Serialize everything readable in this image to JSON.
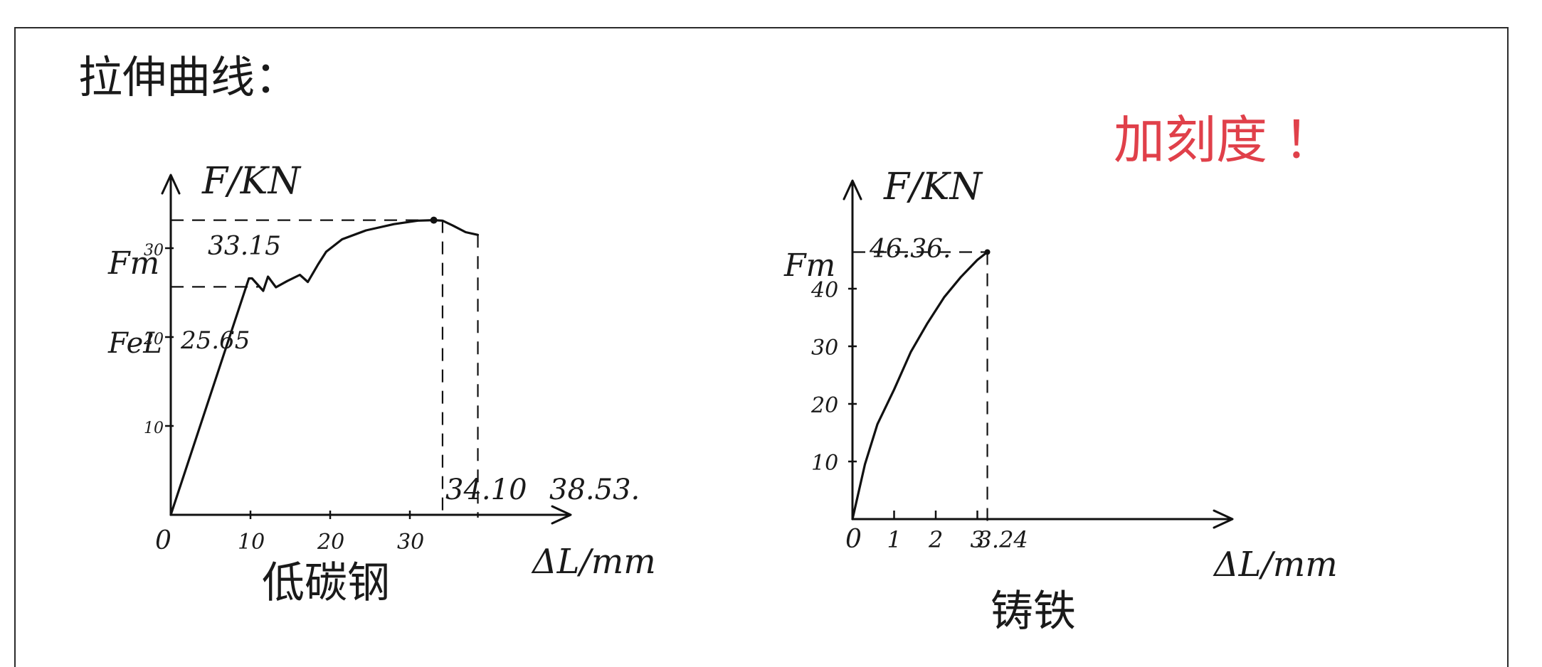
{
  "heading": "拉伸曲线：",
  "note": "加刻度 ！",
  "chart_data": [
    {
      "type": "line",
      "title": "低碳钢",
      "ylabel": "F/KN",
      "xlabel": "ΔL/mm",
      "xlim": [
        0,
        42
      ],
      "ylim": [
        0,
        40
      ],
      "x_ticks": [
        "0",
        "10",
        "20",
        "30"
      ],
      "y_ticks": [
        "10",
        "20",
        "30"
      ],
      "annotations": {
        "fm_label": "Fm",
        "fm_value": "33.15",
        "fel_label": "FeL",
        "fel_value": "25.65",
        "x_mark_1": "34.10",
        "x_mark_2": "38.53."
      },
      "series": [
        {
          "x": [
            0,
            9.8,
            10.2,
            11.6,
            12.2,
            13.2,
            14.6,
            16.2,
            17.2,
            18.5,
            19.5,
            21.5,
            24.5,
            28,
            31,
            33,
            34.1,
            35.5,
            37,
            38.53
          ],
          "y": [
            0,
            26.6,
            26.6,
            25.2,
            26.8,
            25.6,
            26.3,
            27.0,
            26.2,
            28.2,
            29.6,
            31.0,
            32.0,
            32.7,
            33.1,
            33.15,
            33.1,
            32.5,
            31.8,
            31.5
          ]
        }
      ]
    },
    {
      "type": "line",
      "title": "铸铁",
      "ylabel": "F/KN",
      "xlabel": "ΔL/mm",
      "xlim": [
        0,
        10
      ],
      "ylim": [
        0,
        50
      ],
      "x_ticks": [
        "0",
        "1",
        "2",
        "3",
        "3.24"
      ],
      "y_ticks": [
        "10",
        "20",
        "30",
        "40"
      ],
      "annotations": {
        "fm_label": "Fm",
        "fm_value": "46.36."
      },
      "series": [
        {
          "x": [
            0,
            0.3,
            0.6,
            1.0,
            1.4,
            1.8,
            2.2,
            2.6,
            3.0,
            3.24
          ],
          "y": [
            0,
            9.5,
            16.5,
            22.5,
            29.0,
            34.0,
            38.5,
            42.0,
            45.0,
            46.36
          ]
        }
      ]
    }
  ]
}
